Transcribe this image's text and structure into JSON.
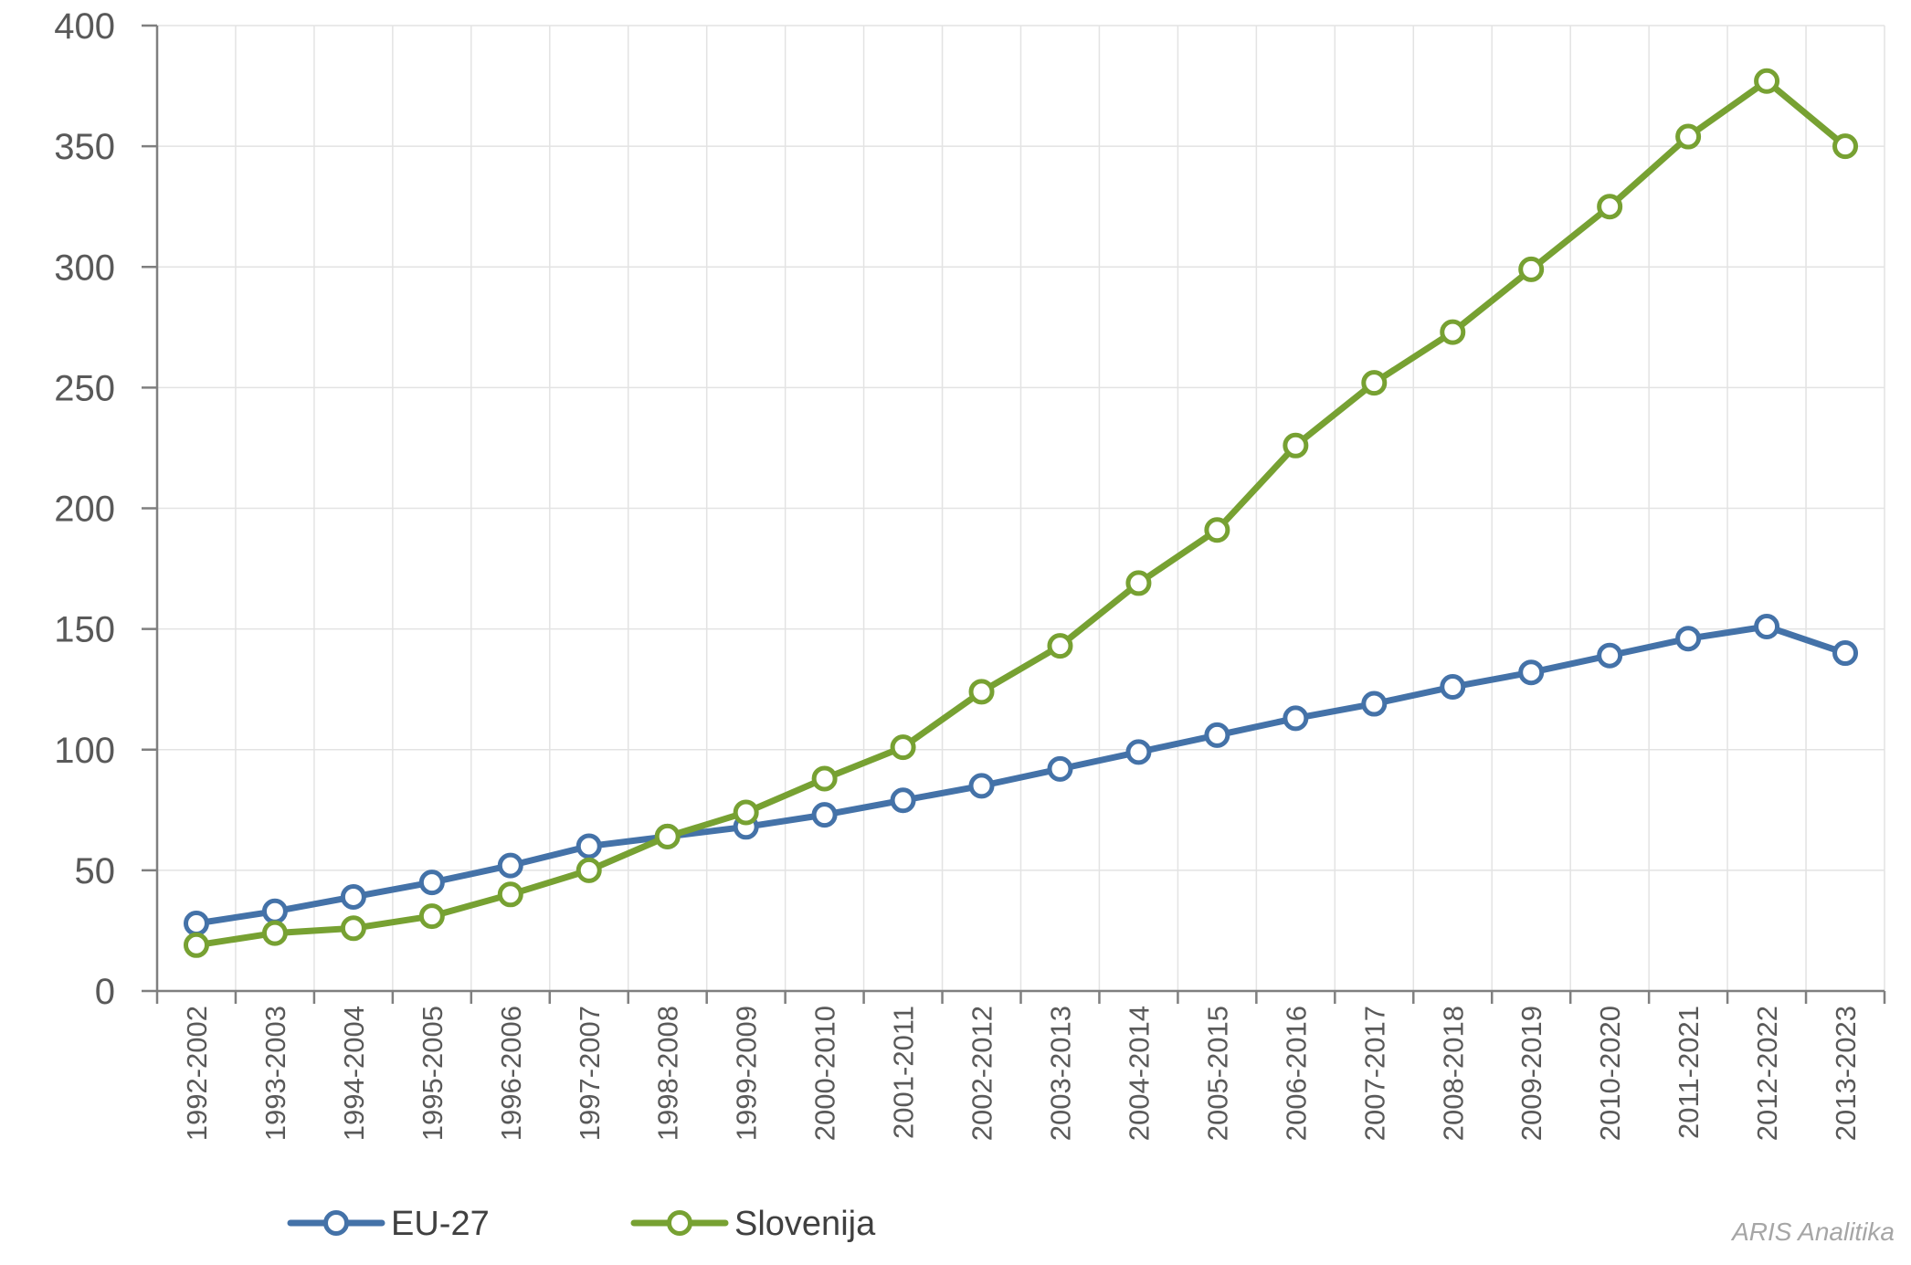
{
  "chart_data": {
    "type": "line",
    "title": "",
    "xlabel": "",
    "ylabel": "",
    "ylim": [
      0,
      400
    ],
    "yticks": [
      "0",
      "50",
      "100",
      "150",
      "200",
      "250",
      "300",
      "350",
      "400"
    ],
    "grid": true,
    "legend_position": "bottom-left",
    "categories": [
      "1992-2002",
      "1993-2003",
      "1994-2004",
      "1995-2005",
      "1996-2006",
      "1997-2007",
      "1998-2008",
      "1999-2009",
      "2000-2010",
      "2001-2011",
      "2002-2012",
      "2003-2013",
      "2004-2014",
      "2005-2015",
      "2006-2016",
      "2007-2017",
      "2008-2018",
      "2009-2019",
      "2010-2020",
      "2011-2021",
      "2012-2022",
      "2013-2023"
    ],
    "series": [
      {
        "name": "EU-27",
        "color": "#4472a8",
        "values": [
          28,
          33,
          39,
          45,
          52,
          60,
          64,
          68,
          73,
          79,
          85,
          92,
          99,
          106,
          113,
          119,
          126,
          132,
          139,
          146,
          151,
          140
        ]
      },
      {
        "name": "Slovenija",
        "color": "#77a132",
        "values": [
          19,
          24,
          26,
          31,
          40,
          50,
          64,
          74,
          88,
          101,
          124,
          143,
          169,
          191,
          226,
          252,
          273,
          299,
          325,
          354,
          377,
          350
        ]
      }
    ]
  },
  "watermark": "ARIS Analitika"
}
